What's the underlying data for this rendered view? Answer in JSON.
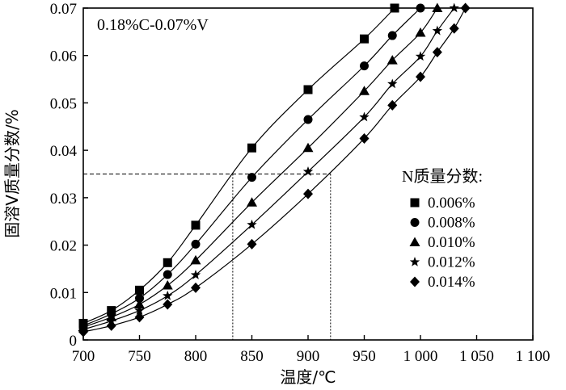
{
  "chart_data": {
    "type": "line",
    "annotation": "0.18%C-0.07%V",
    "xlabel": "温度/℃",
    "ylabel": "固溶V质量分数/%",
    "xlim": [
      700,
      1100
    ],
    "ylim": [
      0,
      0.07
    ],
    "x_ticks": [
      700,
      750,
      800,
      850,
      900,
      950,
      1000,
      1050,
      1100
    ],
    "x_tick_labels": [
      "700",
      "750",
      "800",
      "850",
      "900",
      "950",
      "1 000",
      "1 050",
      "1 100"
    ],
    "y_ticks": [
      0,
      0.01,
      0.02,
      0.03,
      0.04,
      0.05,
      0.06,
      0.07
    ],
    "y_tick_labels": [
      "0",
      "0.01",
      "0.02",
      "0.03",
      "0.04",
      "0.05",
      "0.06",
      "0.07"
    ],
    "legend_title": "N质量分数:",
    "legend_position": "right",
    "reference_lines": {
      "y": 0.035,
      "x": [
        833,
        920
      ]
    },
    "series": [
      {
        "name": "0.006%",
        "marker": "square",
        "x": [
          700,
          725,
          750,
          775,
          800,
          850,
          900,
          950,
          977
        ],
        "y": [
          0.0035,
          0.0062,
          0.0105,
          0.0163,
          0.0242,
          0.0405,
          0.0528,
          0.0635,
          0.07
        ]
      },
      {
        "name": "0.008%",
        "marker": "circle",
        "x": [
          700,
          725,
          750,
          775,
          800,
          850,
          900,
          950,
          975,
          1000
        ],
        "y": [
          0.003,
          0.0055,
          0.0088,
          0.0138,
          0.0202,
          0.0343,
          0.0465,
          0.0578,
          0.0642,
          0.07
        ]
      },
      {
        "name": "0.010%",
        "marker": "triangle",
        "x": [
          700,
          725,
          750,
          775,
          800,
          850,
          900,
          950,
          975,
          1000,
          1015
        ],
        "y": [
          0.0027,
          0.0048,
          0.0075,
          0.0115,
          0.0168,
          0.029,
          0.0405,
          0.0525,
          0.059,
          0.0648,
          0.07
        ]
      },
      {
        "name": "0.012%",
        "marker": "star",
        "x": [
          700,
          725,
          750,
          775,
          800,
          850,
          900,
          950,
          975,
          1000,
          1015,
          1030
        ],
        "y": [
          0.0022,
          0.004,
          0.0062,
          0.0093,
          0.0137,
          0.0243,
          0.0355,
          0.047,
          0.054,
          0.0598,
          0.0652,
          0.07
        ]
      },
      {
        "name": "0.014%",
        "marker": "diamond",
        "x": [
          700,
          725,
          750,
          775,
          800,
          850,
          900,
          950,
          975,
          1000,
          1015,
          1030,
          1040
        ],
        "y": [
          0.0017,
          0.003,
          0.0048,
          0.0075,
          0.011,
          0.0202,
          0.0308,
          0.0425,
          0.0495,
          0.0555,
          0.0607,
          0.0657,
          0.07
        ]
      }
    ]
  }
}
